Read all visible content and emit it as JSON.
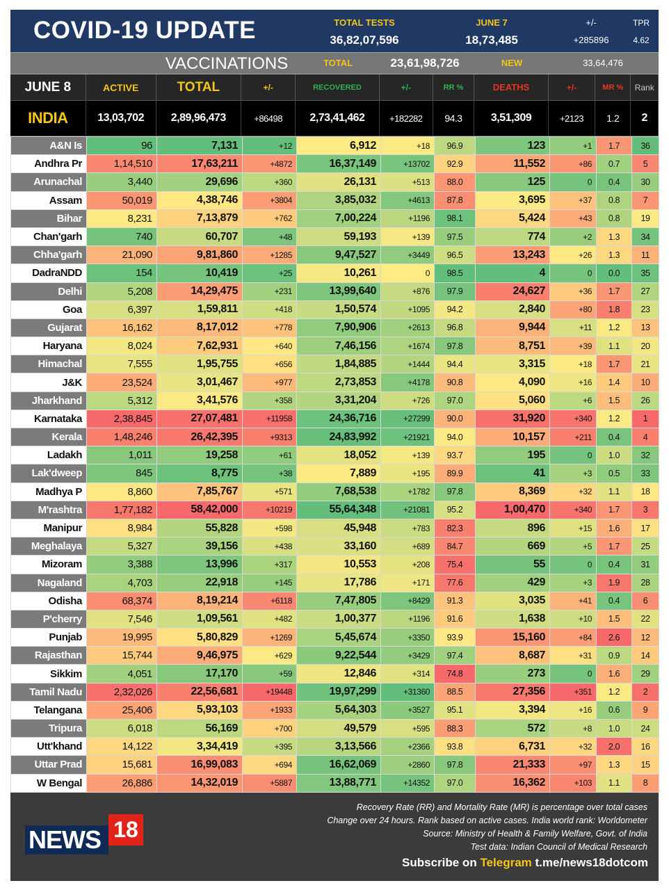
{
  "header": {
    "title": "COVID-19 UPDATE",
    "total_tests_label": "TOTAL TESTS",
    "total_tests_value": "36,82,07,596",
    "june7_label": "JUNE 7",
    "june7_value": "18,73,485",
    "change_label": "+/-",
    "change_value": "+285896",
    "tpr_label": "TPR",
    "tpr_value": "4.62"
  },
  "vaccinations": {
    "label": "VACCINATIONS",
    "total_label": "TOTAL",
    "total_value": "23,61,98,726",
    "new_label": "NEW",
    "new_value": "33,64,476"
  },
  "columns": [
    "JUNE 8",
    "ACTIVE",
    "TOTAL",
    "+/-",
    "RECOVERED",
    "+/-",
    "RR %",
    "DEATHS",
    "+/-",
    "MR %",
    "Rank"
  ],
  "column_colors": [
    "#ffffff",
    "#f5c518",
    "#f5c518",
    "#f5c518",
    "#2db34a",
    "#2db34a",
    "#2db34a",
    "#e8361f",
    "#e8361f",
    "#e8361f",
    "#cccccc"
  ],
  "india": [
    "INDIA",
    "13,03,702",
    "2,89,96,473",
    "+86498",
    "2,73,41,462",
    "+182282",
    "94.3",
    "3,51,309",
    "+2123",
    "1.2",
    "2"
  ],
  "color_scale": {
    "green": "#63be7b",
    "yellow": "#ffeb84",
    "red": "#f8696b"
  },
  "rows": [
    [
      "A&N Is",
      "96",
      "7,131",
      "+12",
      "6,912",
      "+18",
      "96.9",
      "123",
      "+1",
      "1.7",
      "36"
    ],
    [
      "Andhra Pr",
      "1,14,510",
      "17,63,211",
      "+4872",
      "16,37,149",
      "+13702",
      "92.9",
      "11,552",
      "+86",
      "0.7",
      "5"
    ],
    [
      "Arunachal",
      "3,440",
      "29,696",
      "+360",
      "26,131",
      "+513",
      "88.0",
      "125",
      "0",
      "0.4",
      "30"
    ],
    [
      "Assam",
      "50,019",
      "4,38,746",
      "+3804",
      "3,85,032",
      "+4613",
      "87.8",
      "3,695",
      "+37",
      "0.8",
      "7"
    ],
    [
      "Bihar",
      "8,231",
      "7,13,879",
      "+762",
      "7,00,224",
      "+1196",
      "98.1",
      "5,424",
      "+43",
      "0.8",
      "19"
    ],
    [
      "Chan'garh",
      "740",
      "60,707",
      "+48",
      "59,193",
      "+139",
      "97.5",
      "774",
      "+2",
      "1.3",
      "34"
    ],
    [
      "Chha'garh",
      "21,090",
      "9,81,860",
      "+1285",
      "9,47,527",
      "+3449",
      "96.5",
      "13,243",
      "+26",
      "1.3",
      "11"
    ],
    [
      "DadraNDD",
      "154",
      "10,419",
      "+25",
      "10,261",
      "0",
      "98.5",
      "4",
      "0",
      "0.0",
      "35"
    ],
    [
      "Delhi",
      "5,208",
      "14,29,475",
      "+231",
      "13,99,640",
      "+876",
      "97.9",
      "24,627",
      "+36",
      "1.7",
      "27"
    ],
    [
      "Goa",
      "6,397",
      "1,59,811",
      "+418",
      "1,50,574",
      "+1095",
      "94.2",
      "2,840",
      "+80",
      "1.8",
      "23"
    ],
    [
      "Gujarat",
      "16,162",
      "8,17,012",
      "+778",
      "7,90,906",
      "+2613",
      "96.8",
      "9,944",
      "+11",
      "1.2",
      "13"
    ],
    [
      "Haryana",
      "8,024",
      "7,62,931",
      "+640",
      "7,46,156",
      "+1674",
      "97.8",
      "8,751",
      "+39",
      "1.1",
      "20"
    ],
    [
      "Himachal",
      "7,555",
      "1,95,755",
      "+656",
      "1,84,885",
      "+1444",
      "94.4",
      "3,315",
      "+18",
      "1.7",
      "21"
    ],
    [
      "J&K",
      "23,524",
      "3,01,467",
      "+977",
      "2,73,853",
      "+4178",
      "90.8",
      "4,090",
      "+16",
      "1.4",
      "10"
    ],
    [
      "Jharkhand",
      "5,312",
      "3,41,576",
      "+358",
      "3,31,204",
      "+726",
      "97.0",
      "5,060",
      "+6",
      "1.5",
      "26"
    ],
    [
      "Karnataka",
      "2,38,845",
      "27,07,481",
      "+11958",
      "24,36,716",
      "+27299",
      "90.0",
      "31,920",
      "+340",
      "1.2",
      "1"
    ],
    [
      "Kerala",
      "1,48,246",
      "26,42,395",
      "+9313",
      "24,83,992",
      "+21921",
      "94.0",
      "10,157",
      "+211",
      "0.4",
      "4"
    ],
    [
      "Ladakh",
      "1,011",
      "19,258",
      "+61",
      "18,052",
      "+139",
      "93.7",
      "195",
      "0",
      "1.0",
      "32"
    ],
    [
      "Lak'dweep",
      "845",
      "8,775",
      "+38",
      "7,889",
      "+195",
      "89.9",
      "41",
      "+3",
      "0.5",
      "33"
    ],
    [
      "Madhya P",
      "8,860",
      "7,85,767",
      "+571",
      "7,68,538",
      "+1782",
      "97.8",
      "8,369",
      "+32",
      "1.1",
      "18"
    ],
    [
      "M'rashtra",
      "1,77,182",
      "58,42,000",
      "+10219",
      "55,64,348",
      "+21081",
      "95.2",
      "1,00,470",
      "+340",
      "1.7",
      "3"
    ],
    [
      "Manipur",
      "8,984",
      "55,828",
      "+598",
      "45,948",
      "+783",
      "82.3",
      "896",
      "+15",
      "1.6",
      "17"
    ],
    [
      "Meghalaya",
      "5,327",
      "39,156",
      "+438",
      "33,160",
      "+689",
      "84.7",
      "669",
      "+5",
      "1.7",
      "25"
    ],
    [
      "Mizoram",
      "3,388",
      "13,996",
      "+317",
      "10,553",
      "+208",
      "75.4",
      "55",
      "0",
      "0.4",
      "31"
    ],
    [
      "Nagaland",
      "4,703",
      "22,918",
      "+145",
      "17,786",
      "+171",
      "77.6",
      "429",
      "+3",
      "1.9",
      "28"
    ],
    [
      "Odisha",
      "68,374",
      "8,19,214",
      "+6118",
      "7,47,805",
      "+8429",
      "91.3",
      "3,035",
      "+41",
      "0.4",
      "6"
    ],
    [
      "P'cherry",
      "7,546",
      "1,09,561",
      "+482",
      "1,00,377",
      "+1196",
      "91.6",
      "1,638",
      "+10",
      "1.5",
      "22"
    ],
    [
      "Punjab",
      "19,995",
      "5,80,829",
      "+1269",
      "5,45,674",
      "+3350",
      "93.9",
      "15,160",
      "+84",
      "2.6",
      "12"
    ],
    [
      "Rajasthan",
      "15,744",
      "9,46,975",
      "+629",
      "9,22,544",
      "+3429",
      "97.4",
      "8,687",
      "+31",
      "0.9",
      "14"
    ],
    [
      "Sikkim",
      "4,051",
      "17,170",
      "+59",
      "12,846",
      "+314",
      "74.8",
      "273",
      "0",
      "1.6",
      "29"
    ],
    [
      "Tamil Nadu",
      "2,32,026",
      "22,56,681",
      "+19448",
      "19,97,299",
      "+31360",
      "88.5",
      "27,356",
      "+351",
      "1.2",
      "2"
    ],
    [
      "Telangana",
      "25,406",
      "5,93,103",
      "+1933",
      "5,64,303",
      "+3527",
      "95.1",
      "3,394",
      "+16",
      "0.6",
      "9"
    ],
    [
      "Tripura",
      "6,018",
      "56,169",
      "+700",
      "49,579",
      "+595",
      "88.3",
      "572",
      "+8",
      "1.0",
      "24"
    ],
    [
      "Utt'khand",
      "14,122",
      "3,34,419",
      "+395",
      "3,13,566",
      "+2366",
      "93.8",
      "6,731",
      "+32",
      "2.0",
      "16"
    ],
    [
      "Uttar Prad",
      "15,681",
      "16,99,083",
      "+694",
      "16,62,069",
      "+2860",
      "97.8",
      "21,333",
      "+97",
      "1.3",
      "15"
    ],
    [
      "W Bengal",
      "26,886",
      "14,32,019",
      "+5887",
      "13,88,771",
      "+14352",
      "97.0",
      "16,362",
      "+103",
      "1.1",
      "8"
    ]
  ],
  "footer": {
    "notes": [
      "Recovery Rate (RR) and Mortality Rate (MR) is percentage over total cases",
      "Change over 24 hours. Rank based on active cases. India world rank: Worldometer",
      "Source: Ministry of Health & Family Welfare, Govt. of India",
      "Test data: Indian Council of Medical Research"
    ],
    "subscribe_prefix": "Subscribe on",
    "subscribe_channel": "Telegram",
    "subscribe_link": "t.me/news18dotcom",
    "logo_text": "NEWS",
    "logo_number": "18"
  }
}
